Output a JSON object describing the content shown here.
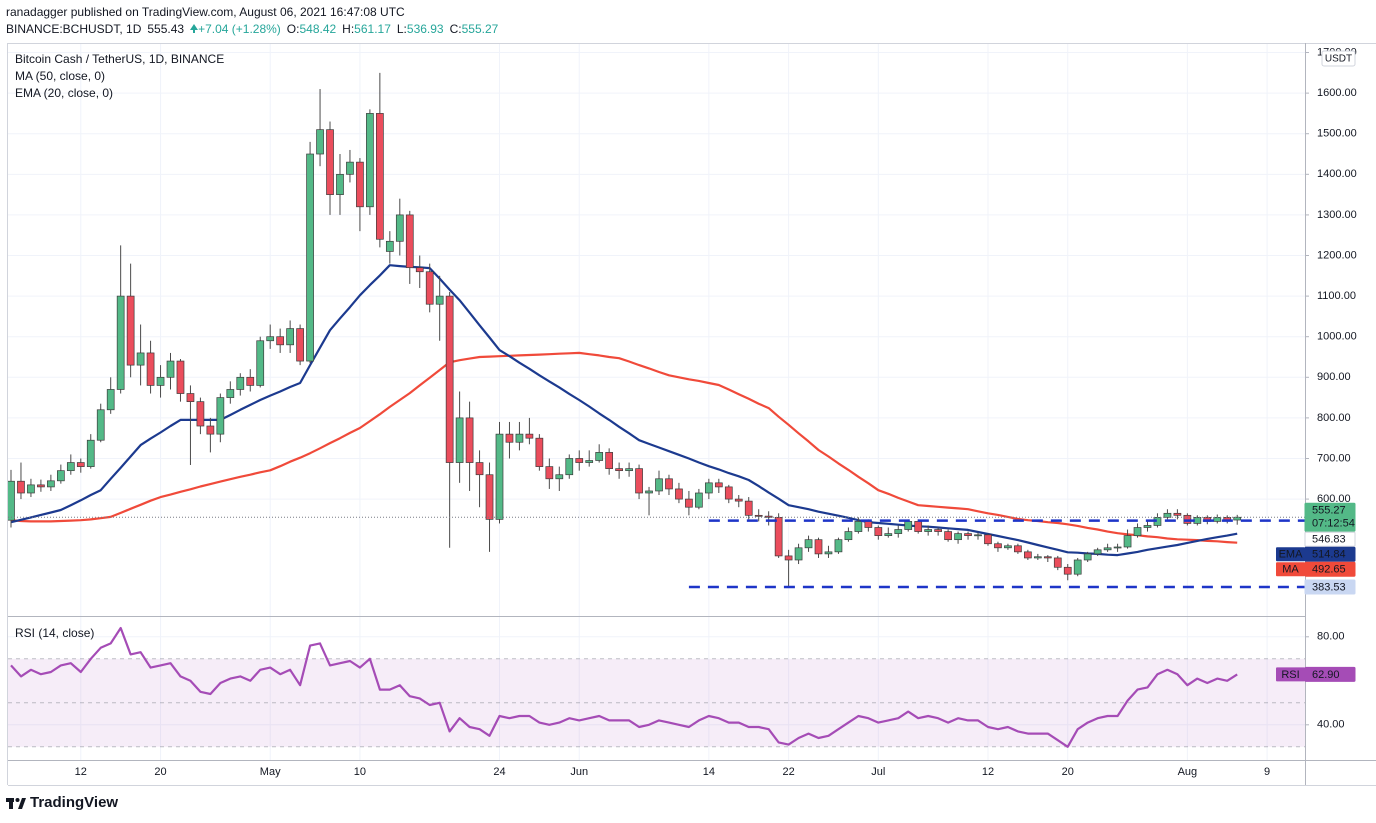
{
  "header": {
    "byline": "ranadagger published on TradingView.com, August 06, 2021 16:47:08 UTC",
    "symbol": "BINANCE:BCHUSDT, 1D",
    "price": "555.43",
    "change": "+7.04 (+1.28%)",
    "ohlc": [
      {
        "key": "O:",
        "value": "548.42"
      },
      {
        "key": "H:",
        "value": "561.17"
      },
      {
        "key": "L:",
        "value": "536.93"
      },
      {
        "key": "C:",
        "value": "555.27"
      }
    ]
  },
  "footer": {
    "brand": "TradingView"
  },
  "chart_data": {
    "type": "candlestick",
    "title": "Bitcoin Cash / TetherUS, 1D, BINANCE",
    "currency": "USDT",
    "countdown": "07:12:54",
    "up_color": "#53b987",
    "down_color": "#eb4d5c",
    "grid": true,
    "x": [
      "04-05",
      "04-06",
      "04-07",
      "04-08",
      "04-09",
      "04-10",
      "04-11",
      "04-12",
      "04-13",
      "04-14",
      "04-15",
      "04-16",
      "04-17",
      "04-18",
      "04-19",
      "04-20",
      "04-21",
      "04-22",
      "04-23",
      "04-24",
      "04-25",
      "04-26",
      "04-27",
      "04-28",
      "04-29",
      "04-30",
      "05-01",
      "05-02",
      "05-03",
      "05-04",
      "05-05",
      "05-06",
      "05-07",
      "05-08",
      "05-09",
      "05-10",
      "05-11",
      "05-12",
      "05-13",
      "05-14",
      "05-15",
      "05-16",
      "05-17",
      "05-18",
      "05-19",
      "05-20",
      "05-21",
      "05-22",
      "05-23",
      "05-24",
      "05-25",
      "05-26",
      "05-27",
      "05-28",
      "05-29",
      "05-30",
      "05-31",
      "06-01",
      "06-02",
      "06-03",
      "06-04",
      "06-05",
      "06-06",
      "06-07",
      "06-08",
      "06-09",
      "06-10",
      "06-11",
      "06-12",
      "06-13",
      "06-14",
      "06-15",
      "06-16",
      "06-17",
      "06-18",
      "06-19",
      "06-20",
      "06-21",
      "06-22",
      "06-23",
      "06-24",
      "06-25",
      "06-26",
      "06-27",
      "06-28",
      "06-29",
      "06-30",
      "07-01",
      "07-02",
      "07-03",
      "07-04",
      "07-05",
      "07-06",
      "07-07",
      "07-08",
      "07-09",
      "07-10",
      "07-11",
      "07-12",
      "07-13",
      "07-14",
      "07-15",
      "07-16",
      "07-17",
      "07-18",
      "07-19",
      "07-20",
      "07-21",
      "07-22",
      "07-23",
      "07-24",
      "07-25",
      "07-26",
      "07-27",
      "07-28",
      "07-29",
      "07-30",
      "07-31",
      "08-01",
      "08-02",
      "08-03",
      "08-04",
      "08-05",
      "08-06"
    ],
    "open": [
      548,
      644,
      615,
      635,
      630,
      645,
      670,
      690,
      680,
      745,
      820,
      870,
      1100,
      930,
      960,
      880,
      900,
      940,
      860,
      840,
      780,
      760,
      850,
      870,
      900,
      880,
      990,
      1000,
      980,
      1020,
      940,
      1450,
      1510,
      1350,
      1400,
      1430,
      1320,
      1550,
      1210,
      1235,
      1300,
      1170,
      1160,
      1080,
      1100,
      690,
      800,
      690,
      660,
      550,
      760,
      740,
      760,
      750,
      680,
      650,
      660,
      700,
      690,
      695,
      715,
      675,
      670,
      675,
      615,
      620,
      650,
      625,
      600,
      580,
      615,
      640,
      630,
      600,
      595,
      560,
      558,
      555,
      460,
      450,
      480,
      500,
      465,
      470,
      500,
      520,
      545,
      530,
      510,
      515,
      525,
      545,
      520,
      525,
      520,
      500,
      515,
      510,
      512,
      490,
      480,
      485,
      470,
      455,
      458,
      455,
      432,
      415,
      450,
      465,
      475,
      480,
      482,
      510,
      530,
      535,
      555,
      565,
      560,
      540,
      555,
      545,
      555,
      548.42
    ],
    "high": [
      672,
      690,
      650,
      648,
      660,
      685,
      710,
      700,
      760,
      835,
      900,
      1225,
      1180,
      1030,
      990,
      930,
      960,
      945,
      880,
      850,
      800,
      860,
      890,
      910,
      920,
      1000,
      1030,
      1020,
      1040,
      1030,
      1480,
      1610,
      1530,
      1450,
      1460,
      1440,
      1560,
      1650,
      1260,
      1340,
      1310,
      1200,
      1180,
      1150,
      1110,
      865,
      840,
      720,
      690,
      790,
      790,
      790,
      800,
      760,
      700,
      680,
      710,
      720,
      720,
      735,
      725,
      690,
      690,
      685,
      630,
      670,
      660,
      640,
      620,
      625,
      650,
      650,
      635,
      610,
      605,
      575,
      570,
      565,
      475,
      490,
      510,
      505,
      485,
      505,
      530,
      555,
      550,
      535,
      530,
      535,
      550,
      550,
      535,
      530,
      525,
      520,
      520,
      518,
      515,
      495,
      490,
      490,
      475,
      465,
      462,
      460,
      440,
      455,
      470,
      480,
      490,
      490,
      525,
      540,
      545,
      565,
      575,
      575,
      565,
      560,
      560,
      562,
      560,
      561.17
    ],
    "low": [
      530,
      600,
      605,
      618,
      620,
      638,
      660,
      665,
      675,
      740,
      810,
      860,
      900,
      880,
      860,
      850,
      870,
      840,
      684,
      760,
      715,
      740,
      835,
      855,
      865,
      875,
      970,
      960,
      960,
      930,
      935,
      1420,
      1300,
      1300,
      1380,
      1260,
      1300,
      1220,
      1180,
      1200,
      1130,
      1120,
      1060,
      990,
      480,
      640,
      620,
      580,
      470,
      540,
      700,
      720,
      735,
      670,
      625,
      620,
      650,
      670,
      680,
      690,
      660,
      650,
      655,
      600,
      560,
      610,
      610,
      590,
      560,
      575,
      600,
      615,
      590,
      580,
      550,
      545,
      535,
      455,
      385,
      440,
      470,
      455,
      455,
      465,
      495,
      515,
      520,
      500,
      505,
      505,
      520,
      515,
      510,
      510,
      495,
      490,
      500,
      500,
      485,
      470,
      475,
      465,
      450,
      450,
      445,
      425,
      400,
      410,
      445,
      460,
      470,
      470,
      478,
      505,
      520,
      530,
      550,
      550,
      535,
      535,
      538,
      540,
      540,
      536.93
    ],
    "close": [
      644,
      615,
      635,
      630,
      645,
      670,
      690,
      680,
      745,
      820,
      870,
      1100,
      930,
      960,
      880,
      900,
      940,
      860,
      840,
      780,
      760,
      850,
      870,
      900,
      880,
      990,
      1000,
      980,
      1020,
      940,
      1450,
      1510,
      1350,
      1400,
      1430,
      1320,
      1550,
      1240,
      1235,
      1300,
      1170,
      1160,
      1080,
      1100,
      690,
      800,
      690,
      660,
      550,
      760,
      740,
      760,
      750,
      680,
      650,
      660,
      700,
      690,
      695,
      715,
      675,
      670,
      675,
      615,
      620,
      650,
      625,
      600,
      580,
      615,
      640,
      630,
      600,
      595,
      560,
      558,
      555,
      460,
      450,
      480,
      500,
      465,
      470,
      500,
      520,
      545,
      530,
      510,
      515,
      525,
      545,
      520,
      525,
      520,
      500,
      515,
      510,
      512,
      490,
      480,
      485,
      470,
      455,
      458,
      455,
      432,
      415,
      450,
      465,
      475,
      480,
      482,
      510,
      530,
      535,
      555,
      565,
      560,
      540,
      555,
      545,
      555,
      548.42,
      555.27
    ],
    "series": [
      {
        "name": "MA (50, close, 0)",
        "tag": "MA",
        "color": "#f04a3a",
        "values": [
          548,
          546,
          545,
          545,
          545,
          546,
          547,
          548,
          550,
          553,
          556,
          566,
          576,
          586,
          596,
          605,
          611,
          618,
          624,
          631,
          637,
          643,
          649,
          655,
          660,
          666,
          671,
          681,
          692,
          702,
          713,
          725,
          738,
          750,
          763,
          775,
          792,
          809,
          827,
          844,
          861,
          880,
          899,
          918,
          937,
          942,
          946,
          950,
          951,
          952,
          953,
          954,
          955,
          956,
          957,
          958,
          959,
          960,
          957,
          954,
          950,
          947,
          939,
          930,
          922,
          913,
          905,
          900,
          895,
          891,
          886,
          881,
          870,
          858,
          847,
          835,
          824,
          803,
          783,
          762,
          742,
          721,
          705,
          688,
          672,
          655,
          639,
          622,
          613,
          603,
          594,
          585,
          583,
          581,
          579,
          577,
          575,
          570,
          565,
          561,
          556,
          551,
          548,
          546,
          543,
          541,
          538,
          534,
          529,
          525,
          520,
          516,
          513,
          511,
          508,
          506,
          503,
          501,
          500,
          499,
          497,
          496,
          494,
          492.65
        ]
      },
      {
        "name": "EMA (20, close, 0)",
        "tag": "EMA",
        "color": "#1c3a8f",
        "values": [
          543,
          549,
          555,
          561,
          567,
          573,
          585,
          597,
          610,
          622,
          650,
          677,
          705,
          733,
          749,
          764,
          780,
          795,
          795,
          795,
          795,
          795,
          807,
          820,
          832,
          844,
          855,
          865,
          876,
          886,
          930,
          973,
          1016,
          1045,
          1073,
          1102,
          1127,
          1151,
          1176,
          1174,
          1172,
          1171,
          1169,
          1143,
          1116,
          1090,
          1059,
          1028,
          998,
          967,
          952,
          936,
          921,
          905,
          890,
          875,
          859,
          844,
          828,
          811,
          795,
          778,
          762,
          745,
          736,
          727,
          718,
          709,
          700,
          690,
          681,
          673,
          664,
          656,
          647,
          632,
          616,
          601,
          585,
          580,
          575,
          569,
          564,
          559,
          554,
          548,
          543,
          541,
          539,
          537,
          535,
          533,
          532,
          530,
          528,
          526,
          524,
          519,
          514,
          509,
          504,
          499,
          493,
          487,
          481,
          475,
          469,
          468,
          466,
          465,
          463,
          462,
          466,
          470,
          475,
          479,
          483,
          487,
          492,
          497,
          502,
          506,
          510,
          514.84
        ]
      }
    ],
    "levels": [
      {
        "value": 546.83,
        "from": "06-14"
      },
      {
        "value": 383.53,
        "from": "06-12"
      }
    ],
    "level_color": "#1e35c8",
    "ylim": [
      312,
      1721
    ],
    "yticks": [
      {
        "value": 600,
        "label": "600.00"
      },
      {
        "value": 700,
        "label": "700.00"
      },
      {
        "value": 800,
        "label": "800.00"
      },
      {
        "value": 900,
        "label": "900.00"
      },
      {
        "value": 1000,
        "label": "1000.00"
      },
      {
        "value": 1100,
        "label": "1100.00"
      },
      {
        "value": 1200,
        "label": "1200.00"
      },
      {
        "value": 1300,
        "label": "1300.00"
      },
      {
        "value": 1400,
        "label": "1400.00"
      },
      {
        "value": 1500,
        "label": "1500.00"
      },
      {
        "value": 1600,
        "label": "1600.00"
      },
      {
        "value": 1700,
        "label": "1700.00"
      }
    ],
    "xlim": [
      "04-05",
      "08-13"
    ],
    "xticks": [
      {
        "value": "04-12",
        "label": "12"
      },
      {
        "value": "04-20",
        "label": "20"
      },
      {
        "value": "05-01",
        "label": "May"
      },
      {
        "value": "05-10",
        "label": "10"
      },
      {
        "value": "05-24",
        "label": "24"
      },
      {
        "value": "06-01",
        "label": "Jun"
      },
      {
        "value": "06-14",
        "label": "14"
      },
      {
        "value": "06-22",
        "label": "22"
      },
      {
        "value": "07-01",
        "label": "Jul"
      },
      {
        "value": "07-12",
        "label": "12"
      },
      {
        "value": "07-20",
        "label": "20"
      },
      {
        "value": "08-01",
        "label": "Aug"
      },
      {
        "value": "08-09",
        "label": "9"
      }
    ],
    "rsi": {
      "type": "line",
      "name": "RSI (14, close)",
      "tag": "RSI",
      "color": "#a54cb6",
      "last_value_label": "62.90",
      "values": [
        67,
        62,
        65,
        63,
        64,
        67,
        68,
        64,
        70,
        75,
        77,
        84,
        72,
        73,
        66,
        67,
        68,
        62,
        60,
        55,
        54,
        59,
        61,
        62,
        60,
        65,
        66,
        63,
        65,
        58,
        76,
        77,
        67,
        68,
        69,
        66,
        70,
        56,
        56,
        58,
        53,
        52,
        49,
        50,
        37,
        43,
        39,
        38,
        35,
        44,
        43,
        44,
        44,
        41,
        40,
        41,
        43,
        42,
        43,
        44,
        42,
        42,
        42,
        39,
        40,
        42,
        41,
        40,
        39,
        42,
        44,
        43,
        41,
        41,
        39,
        39,
        38,
        32,
        31,
        34,
        36,
        34,
        35,
        38,
        41,
        44,
        43,
        41,
        42,
        43,
        46,
        43,
        44,
        43,
        41,
        43,
        42,
        42,
        39,
        38,
        39,
        37,
        36,
        36,
        36,
        33,
        30,
        38,
        41,
        43,
        44,
        44,
        51,
        56,
        57,
        63,
        65,
        63,
        58,
        61,
        59,
        61,
        60,
        62.9
      ],
      "ylim": [
        24,
        89
      ],
      "yticks": [
        {
          "value": 40,
          "label": "40.00"
        },
        {
          "value": 80,
          "label": "80.00"
        }
      ],
      "band": [
        30,
        70
      ],
      "midline": 50
    }
  }
}
